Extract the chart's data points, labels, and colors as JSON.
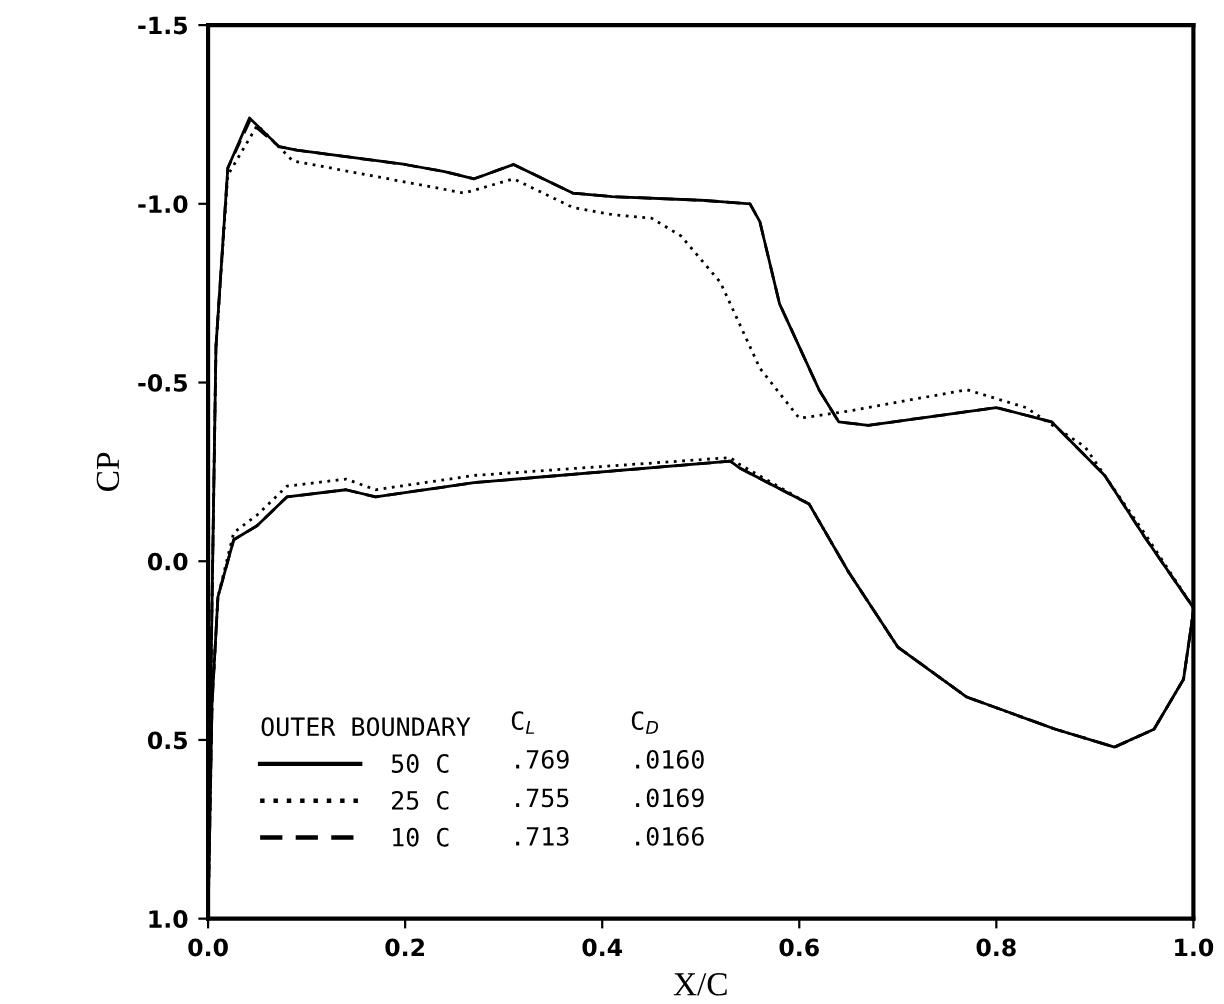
{
  "chart_data": {
    "type": "line",
    "xlabel": "X/C",
    "ylabel": "CP",
    "xlim": [
      0.0,
      1.0
    ],
    "ylim": [
      1.0,
      -1.5
    ],
    "xticks": [
      {
        "value": 0,
        "label": "0.0"
      },
      0.2,
      0.4,
      0.6,
      0.8,
      {
        "value": 1,
        "label": "1.0"
      }
    ],
    "yticks": [
      -1.5,
      {
        "value": -1,
        "label": "-1.0"
      },
      -0.5,
      {
        "value": 0,
        "label": "0.0"
      },
      0.5,
      {
        "value": 1,
        "label": "1.0"
      }
    ],
    "grid": false,
    "legend": "bottom left",
    "marker": "none",
    "legend_title": "OUTER BOUNDARY",
    "annotations": [
      "C$_{L}$",
      "C$_{D}$",
      ".769",
      ".0160",
      ".755",
      ".0169",
      ".713",
      ".0166"
    ],
    "series": [
      {
        "name": "50 C",
        "color": "#000000",
        "line_style": "solid",
        "x": [
          1.0,
          0.99,
          0.96,
          0.92,
          0.86,
          0.77,
          0.7,
          0.65,
          0.61,
          0.54,
          0.53,
          0.27,
          0.17,
          0.14,
          0.08,
          0.05,
          0.026,
          0.01,
          0.004,
          0.0,
          0.003,
          0.008,
          0.02,
          0.042,
          0.072,
          0.09,
          0.2,
          0.24,
          0.27,
          0.28,
          0.31,
          0.37,
          0.41,
          0.5,
          0.55,
          0.56,
          0.58,
          0.62,
          0.64,
          0.67,
          0.8,
          0.856,
          0.91,
          0.95,
          1.0
        ],
        "values": [
          0.14,
          0.33,
          0.47,
          0.52,
          0.47,
          0.38,
          0.24,
          0.03,
          -0.16,
          -0.26,
          -0.28,
          -0.22,
          -0.18,
          -0.2,
          -0.18,
          -0.1,
          -0.06,
          0.1,
          0.4,
          1.0,
          0.3,
          -0.6,
          -1.1,
          -1.24,
          -1.16,
          -1.15,
          -1.11,
          -1.09,
          -1.07,
          -1.08,
          -1.11,
          -1.03,
          -1.02,
          -1.01,
          -1.0,
          -0.95,
          -0.72,
          -0.48,
          -0.39,
          -0.38,
          -0.43,
          -0.39,
          -0.24,
          -0.07,
          0.13
        ]
      },
      {
        "name": "25 C",
        "color": "#000000",
        "line_style": "dotted",
        "x": [
          1.0,
          0.99,
          0.96,
          0.92,
          0.86,
          0.77,
          0.7,
          0.65,
          0.61,
          0.54,
          0.53,
          0.27,
          0.17,
          0.14,
          0.08,
          0.05,
          0.026,
          0.01,
          0.004,
          0.0,
          0.003,
          0.008,
          0.02,
          0.05,
          0.086,
          0.26,
          0.31,
          0.37,
          0.41,
          0.45,
          0.48,
          0.52,
          0.53,
          0.56,
          0.6,
          0.65,
          0.77,
          0.83,
          0.89,
          0.95,
          1.0
        ],
        "values": [
          0.14,
          0.33,
          0.47,
          0.52,
          0.47,
          0.38,
          0.24,
          0.03,
          -0.16,
          -0.27,
          -0.29,
          -0.24,
          -0.2,
          -0.23,
          -0.21,
          -0.13,
          -0.08,
          0.1,
          0.4,
          1.0,
          0.3,
          -0.6,
          -1.08,
          -1.22,
          -1.12,
          -1.03,
          -1.07,
          -0.99,
          -0.97,
          -0.96,
          -0.91,
          -0.78,
          -0.72,
          -0.54,
          -0.4,
          -0.42,
          -0.48,
          -0.43,
          -0.32,
          -0.08,
          0.13
        ]
      },
      {
        "name": "10 C",
        "color": "#000000",
        "line_style": "dashed",
        "x": [
          1.0,
          0.99,
          0.96,
          0.92,
          0.86,
          0.77,
          0.7,
          0.65,
          0.61,
          0.54,
          0.53,
          0.27,
          0.17,
          0.14,
          0.08,
          0.05,
          0.026,
          0.01,
          0.004,
          0.0,
          0.003,
          0.008,
          0.02,
          0.042,
          0.072,
          0.09,
          0.2,
          0.24,
          0.27,
          0.28,
          0.31,
          0.37,
          0.41,
          0.5,
          0.55,
          0.56,
          0.58,
          0.62,
          0.64,
          0.67,
          0.8,
          0.856,
          0.91,
          0.95,
          1.0
        ],
        "values": [
          0.14,
          0.33,
          0.47,
          0.52,
          0.47,
          0.38,
          0.24,
          0.03,
          -0.16,
          -0.26,
          -0.28,
          -0.22,
          -0.18,
          -0.2,
          -0.18,
          -0.1,
          -0.06,
          0.1,
          0.4,
          1.0,
          0.3,
          -0.6,
          -1.1,
          -1.23,
          -1.16,
          -1.15,
          -1.11,
          -1.09,
          -1.07,
          -1.08,
          -1.11,
          -1.03,
          -1.02,
          -1.01,
          -1.0,
          -0.95,
          -0.72,
          -0.48,
          -0.39,
          -0.38,
          -0.43,
          -0.39,
          -0.24,
          -0.07,
          0.13
        ]
      }
    ]
  }
}
